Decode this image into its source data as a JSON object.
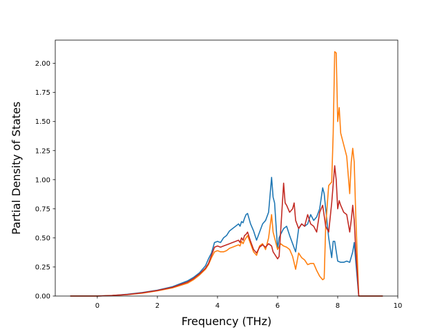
{
  "chart_data": {
    "type": "line",
    "title": "",
    "xlabel": "Frequency (THz)",
    "ylabel": "Partial Density of States",
    "xlim": [
      -1.4,
      10.0
    ],
    "ylim": [
      0.0,
      2.2
    ],
    "xticks": [
      0,
      2,
      4,
      6,
      8,
      10
    ],
    "yticks": [
      0.0,
      0.25,
      0.5,
      0.75,
      1.0,
      1.25,
      1.5,
      1.75,
      2.0
    ],
    "xtick_labels": [
      "0",
      "2",
      "4",
      "6",
      "8",
      "10"
    ],
    "ytick_labels": [
      "0.00",
      "0.25",
      "0.50",
      "0.75",
      "1.00",
      "1.25",
      "1.50",
      "1.75",
      "2.00"
    ],
    "grid": false,
    "series": [
      {
        "color": "#1f77b4",
        "x": [
          -0.9,
          0,
          0.5,
          1.0,
          1.5,
          2.0,
          2.5,
          3.0,
          3.2,
          3.4,
          3.6,
          3.7,
          3.8,
          3.9,
          4.0,
          4.1,
          4.2,
          4.3,
          4.4,
          4.5,
          4.6,
          4.7,
          4.75,
          4.8,
          4.85,
          4.9,
          4.95,
          5.0,
          5.1,
          5.2,
          5.3,
          5.4,
          5.5,
          5.6,
          5.7,
          5.8,
          5.85,
          5.9,
          6.0,
          6.05,
          6.1,
          6.2,
          6.3,
          6.4,
          6.5,
          6.6,
          6.7,
          6.8,
          6.9,
          7.0,
          7.1,
          7.2,
          7.3,
          7.4,
          7.5,
          7.55,
          7.6,
          7.7,
          7.8,
          7.85,
          7.9,
          8.0,
          8.1,
          8.2,
          8.3,
          8.4,
          8.5,
          8.55,
          8.6,
          8.7,
          9.0,
          9.5
        ],
        "y": [
          0.0,
          0.0,
          0.005,
          0.015,
          0.03,
          0.05,
          0.08,
          0.13,
          0.16,
          0.2,
          0.26,
          0.32,
          0.37,
          0.46,
          0.47,
          0.46,
          0.5,
          0.52,
          0.56,
          0.58,
          0.6,
          0.62,
          0.6,
          0.64,
          0.63,
          0.67,
          0.7,
          0.71,
          0.62,
          0.56,
          0.48,
          0.55,
          0.62,
          0.65,
          0.72,
          1.02,
          0.85,
          0.8,
          0.4,
          0.5,
          0.53,
          0.58,
          0.6,
          0.52,
          0.45,
          0.38,
          0.58,
          0.62,
          0.6,
          0.62,
          0.7,
          0.65,
          0.68,
          0.75,
          0.93,
          0.88,
          0.75,
          0.5,
          0.33,
          0.47,
          0.47,
          0.3,
          0.29,
          0.29,
          0.3,
          0.29,
          0.38,
          0.46,
          0.3,
          0.0,
          0.0,
          0.0
        ]
      },
      {
        "color": "#ff7f0e",
        "x": [
          -0.9,
          0,
          0.5,
          1.0,
          1.5,
          2.0,
          2.5,
          3.0,
          3.2,
          3.4,
          3.6,
          3.7,
          3.8,
          3.9,
          4.0,
          4.1,
          4.2,
          4.3,
          4.4,
          4.5,
          4.6,
          4.7,
          4.75,
          4.8,
          4.85,
          4.9,
          4.95,
          5.0,
          5.1,
          5.2,
          5.3,
          5.4,
          5.5,
          5.6,
          5.7,
          5.8,
          5.85,
          5.9,
          6.0,
          6.05,
          6.1,
          6.2,
          6.3,
          6.4,
          6.5,
          6.6,
          6.7,
          6.8,
          6.9,
          7.0,
          7.1,
          7.2,
          7.3,
          7.4,
          7.5,
          7.55,
          7.6,
          7.7,
          7.8,
          7.85,
          7.9,
          7.95,
          8.0,
          8.05,
          8.1,
          8.15,
          8.2,
          8.3,
          8.4,
          8.45,
          8.5,
          8.55,
          8.6,
          8.7,
          9.0,
          9.5
        ],
        "y": [
          0.0,
          0.0,
          0.005,
          0.012,
          0.025,
          0.045,
          0.07,
          0.11,
          0.14,
          0.18,
          0.23,
          0.27,
          0.33,
          0.38,
          0.39,
          0.38,
          0.38,
          0.39,
          0.41,
          0.42,
          0.43,
          0.44,
          0.43,
          0.47,
          0.45,
          0.48,
          0.5,
          0.52,
          0.45,
          0.38,
          0.35,
          0.43,
          0.45,
          0.4,
          0.5,
          0.7,
          0.55,
          0.5,
          0.4,
          0.42,
          0.45,
          0.43,
          0.42,
          0.4,
          0.34,
          0.23,
          0.37,
          0.33,
          0.31,
          0.27,
          0.28,
          0.28,
          0.22,
          0.17,
          0.14,
          0.15,
          0.6,
          0.95,
          0.98,
          1.4,
          2.1,
          2.09,
          1.5,
          1.62,
          1.4,
          1.35,
          1.3,
          1.2,
          0.88,
          1.15,
          1.27,
          1.15,
          0.7,
          0.0,
          0.0,
          0.0
        ]
      },
      {
        "color": "#c22a23",
        "x": [
          -0.9,
          0,
          0.5,
          1.0,
          1.5,
          2.0,
          2.5,
          3.0,
          3.2,
          3.4,
          3.6,
          3.7,
          3.8,
          3.9,
          4.0,
          4.1,
          4.2,
          4.3,
          4.4,
          4.5,
          4.6,
          4.7,
          4.75,
          4.8,
          4.85,
          4.9,
          4.95,
          5.0,
          5.1,
          5.2,
          5.3,
          5.4,
          5.5,
          5.6,
          5.7,
          5.8,
          5.85,
          5.9,
          6.0,
          6.05,
          6.1,
          6.2,
          6.25,
          6.3,
          6.4,
          6.5,
          6.55,
          6.6,
          6.7,
          6.8,
          6.9,
          7.0,
          7.1,
          7.2,
          7.3,
          7.4,
          7.5,
          7.6,
          7.7,
          7.8,
          7.9,
          7.95,
          8.0,
          8.05,
          8.1,
          8.15,
          8.2,
          8.3,
          8.4,
          8.45,
          8.5,
          8.55,
          8.6,
          8.7,
          9.0,
          9.5
        ],
        "y": [
          0.0,
          0.0,
          0.005,
          0.013,
          0.028,
          0.048,
          0.075,
          0.12,
          0.15,
          0.19,
          0.24,
          0.28,
          0.35,
          0.42,
          0.43,
          0.42,
          0.43,
          0.44,
          0.45,
          0.46,
          0.47,
          0.48,
          0.46,
          0.5,
          0.48,
          0.52,
          0.53,
          0.55,
          0.47,
          0.4,
          0.37,
          0.42,
          0.44,
          0.42,
          0.45,
          0.43,
          0.38,
          0.36,
          0.32,
          0.34,
          0.55,
          0.97,
          0.8,
          0.78,
          0.72,
          0.75,
          0.8,
          0.65,
          0.58,
          0.62,
          0.6,
          0.7,
          0.62,
          0.6,
          0.55,
          0.72,
          0.78,
          0.6,
          0.55,
          0.8,
          1.12,
          1.0,
          0.75,
          0.82,
          0.78,
          0.75,
          0.72,
          0.7,
          0.55,
          0.65,
          0.78,
          0.65,
          0.4,
          0.0,
          0.0,
          0.0
        ]
      }
    ]
  }
}
